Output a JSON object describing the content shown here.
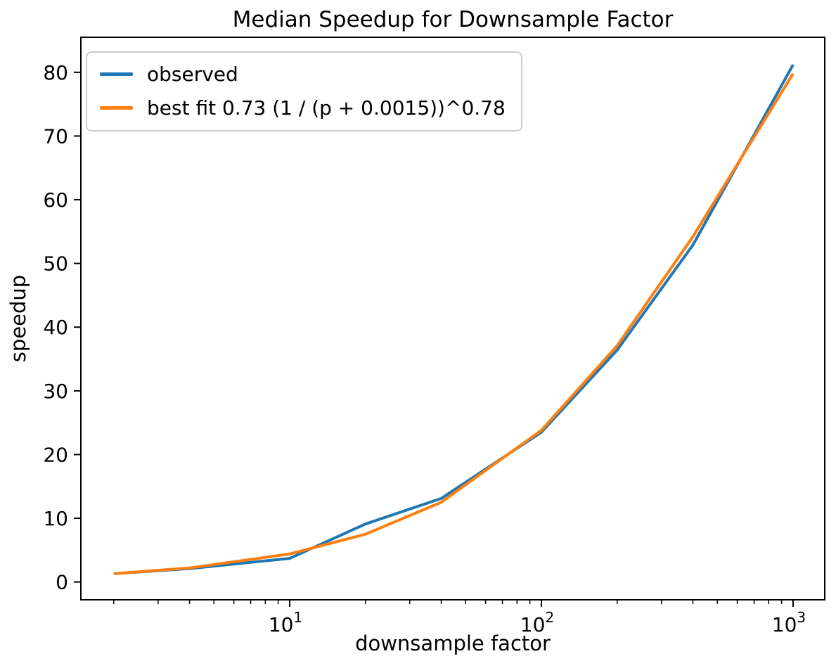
{
  "chart_data": {
    "type": "line",
    "title": "Median Speedup for Downsample Factor",
    "xlabel": "downsample factor",
    "ylabel": "speedup",
    "x_scale": "log",
    "grid": false,
    "legend_position": "upper left",
    "x": [
      2,
      4,
      10,
      20,
      40,
      100,
      200,
      400,
      1000
    ],
    "series": [
      {
        "name": "observed",
        "color": "#1f77b4",
        "values": [
          1.3,
          2.1,
          3.7,
          9.1,
          13.1,
          23.5,
          36.4,
          52.9,
          81.2
        ]
      },
      {
        "name": "best fit 0.73 (1 / (p + 0.0015))^0.78",
        "color": "#ff7f0e",
        "values": [
          1.3,
          2.2,
          4.4,
          7.5,
          12.5,
          23.8,
          37.1,
          54.2,
          79.8
        ]
      }
    ],
    "xlim": [
      1.48,
      1336
    ],
    "ylim": [
      -2.8,
      85.5
    ],
    "y_ticks": [
      0,
      10,
      20,
      30,
      40,
      50,
      60,
      70,
      80
    ],
    "x_major_ticks": [
      10,
      100,
      1000
    ],
    "x_major_tick_labels": [
      "10^1",
      "10^2",
      "10^3"
    ],
    "x_minor_ticks": [
      2,
      3,
      4,
      5,
      6,
      7,
      8,
      9,
      20,
      30,
      40,
      50,
      60,
      70,
      80,
      90,
      200,
      300,
      400,
      500,
      600,
      700,
      800,
      900
    ],
    "axis_color": "#000000",
    "tick_label_color": "#000000"
  }
}
